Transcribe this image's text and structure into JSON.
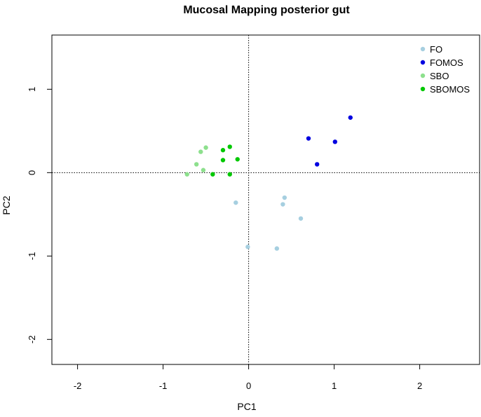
{
  "chart_data": {
    "type": "scatter",
    "title": "Mucosal Mapping posterior gut",
    "xlabel": "PC1",
    "ylabel": "PC2",
    "xlim": [
      -2.3,
      2.7
    ],
    "ylim": [
      -2.3,
      1.65
    ],
    "xticks": [
      "-2",
      "-1",
      "0",
      "1",
      "2"
    ],
    "yticks": [
      "-2",
      "-1",
      "0",
      "1"
    ],
    "reference_lines": {
      "x": 0,
      "y": 0,
      "style": "dotted"
    },
    "grid": false,
    "legend_position": "top-right",
    "series": [
      {
        "name": "FO",
        "color": "#a6cfe0",
        "points": [
          [
            -0.15,
            -0.36
          ],
          [
            0.42,
            -0.3
          ],
          [
            0.4,
            -0.38
          ],
          [
            0.61,
            -0.55
          ],
          [
            -0.01,
            -0.89
          ],
          [
            0.33,
            -0.91
          ]
        ]
      },
      {
        "name": "FOMOS",
        "color": "#0000e0",
        "points": [
          [
            0.7,
            0.41
          ],
          [
            1.01,
            0.37
          ],
          [
            1.19,
            0.66
          ],
          [
            0.8,
            0.1
          ]
        ]
      },
      {
        "name": "SBO",
        "color": "#8de08d",
        "points": [
          [
            -0.5,
            0.3
          ],
          [
            -0.56,
            0.25
          ],
          [
            -0.61,
            0.1
          ],
          [
            -0.53,
            0.03
          ],
          [
            -0.72,
            -0.02
          ]
        ]
      },
      {
        "name": "SBOMOS",
        "color": "#00c800",
        "points": [
          [
            -0.3,
            0.27
          ],
          [
            -0.22,
            0.31
          ],
          [
            -0.3,
            0.15
          ],
          [
            -0.13,
            0.16
          ],
          [
            -0.42,
            -0.02
          ],
          [
            -0.22,
            -0.02
          ]
        ]
      }
    ]
  }
}
